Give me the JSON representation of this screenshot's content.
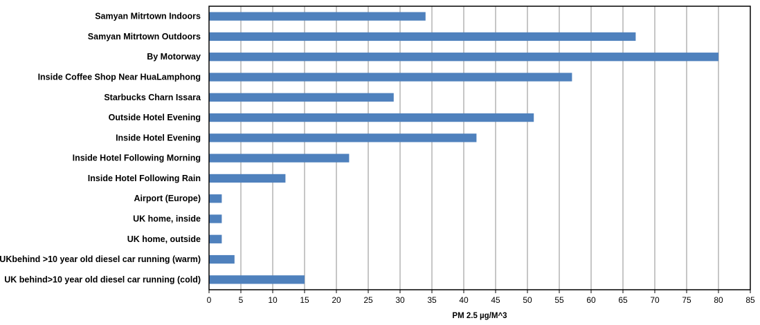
{
  "chart_data": {
    "type": "bar",
    "orientation": "horizontal",
    "categories": [
      "Samyan Mitrtown Indoors",
      "Samyan Mitrtown Outdoors",
      "By Motorway",
      "Inside Coffee Shop Near HuaLamphong",
      "Starbucks Charn Issara",
      "Outside Hotel Evening",
      "Inside Hotel Evening",
      "Inside Hotel Following Morning",
      "Inside Hotel Following Rain",
      "Airport  (Europe)",
      "UK home, inside",
      "UK home, outside",
      "UKbehind >10 year old diesel car running (warm)",
      "UK behind>10 year old diesel car running (cold)"
    ],
    "values": [
      34,
      67,
      80,
      57,
      29,
      51,
      42,
      22,
      12,
      2,
      2,
      2,
      4,
      15
    ],
    "title": "",
    "xlabel": "PM 2.5 µg/M^3",
    "ylabel": "",
    "xlim": [
      0,
      85
    ],
    "xticks": [
      "0",
      "5",
      "10",
      "15",
      "20",
      "25",
      "30",
      "35",
      "40",
      "45",
      "50",
      "55",
      "60",
      "65",
      "70",
      "75",
      "80",
      "85"
    ],
    "grid": "vertical",
    "legend": "none",
    "bar_color": "#4f81bd"
  }
}
